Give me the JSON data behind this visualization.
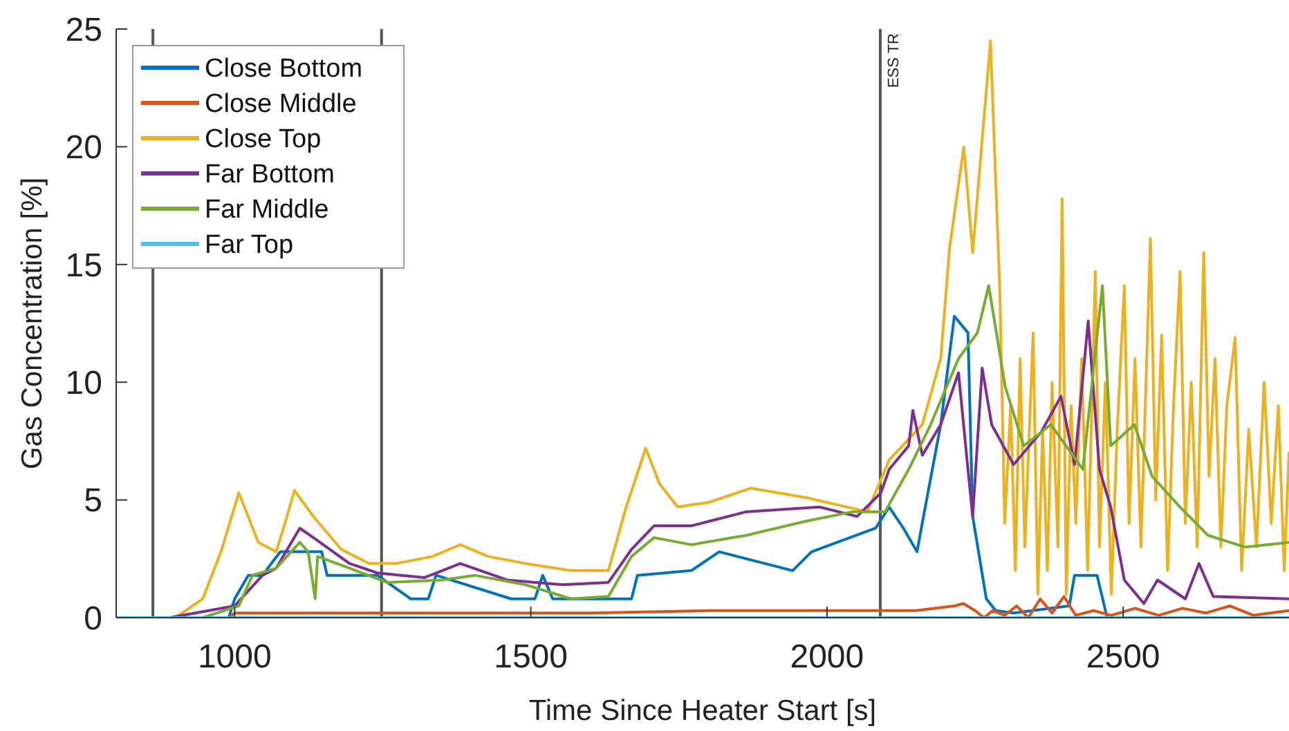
{
  "chart_data": {
    "type": "line",
    "xlabel": "Time Since Heater Start [s]",
    "ylabel": "Gas Concentration [%]",
    "xlim": [
      800,
      2780
    ],
    "ylim": [
      0,
      25
    ],
    "xticks": [
      1000,
      1500,
      2000,
      2500
    ],
    "yticks": [
      0,
      5,
      10,
      15,
      20,
      25
    ],
    "grid": false,
    "legend": "top left",
    "line_style": "solid",
    "marker": "none",
    "ref_lines": [
      {
        "axis": "x",
        "value": 862,
        "label": null,
        "color": "#555555"
      },
      {
        "axis": "x",
        "value": 1248,
        "label": null,
        "color": "#555555"
      },
      {
        "axis": "x",
        "value": 2090,
        "label": "ESS TR",
        "color": "#555555"
      }
    ],
    "series": [
      {
        "name": "Close Bottom",
        "color": "#0072bd",
        "x": [
          800,
          990,
          1000,
          1023,
          1047,
          1077,
          1147,
          1156,
          1241,
          1297,
          1327,
          1340,
          1467,
          1507,
          1520,
          1537,
          1670,
          1680,
          1771,
          1818,
          1942,
          1974,
          2082,
          2105,
          2129,
          2152,
          2160,
          2192,
          2215,
          2238,
          2246,
          2269,
          2285,
          2315,
          2409,
          2418,
          2456,
          2472
        ],
        "values": [
          0,
          0,
          0.8,
          1.8,
          1.8,
          2.8,
          2.8,
          1.8,
          1.8,
          0.8,
          0.8,
          1.8,
          0.8,
          0.8,
          1.8,
          0.8,
          0.8,
          1.8,
          2,
          2.8,
          2,
          2.8,
          3.8,
          4.7,
          3.8,
          2.8,
          3.9,
          8.2,
          12.8,
          12.1,
          4.3,
          0.8,
          0.3,
          0.2,
          0.5,
          1.8,
          1.8,
          0.1
        ]
      },
      {
        "name": "Close Middle",
        "color": "#d95319",
        "x": [
          800,
          990,
          1000,
          1200,
          1400,
          1600,
          1800,
          2000,
          2100,
          2150,
          2215,
          2230,
          2250,
          2265,
          2280,
          2300,
          2320,
          2340,
          2360,
          2380,
          2400,
          2420,
          2450,
          2480,
          2520,
          2560,
          2600,
          2640,
          2680,
          2720,
          2780
        ],
        "values": [
          0,
          0,
          0.2,
          0.2,
          0.2,
          0.2,
          0.3,
          0.3,
          0.3,
          0.3,
          0.5,
          0.6,
          0.3,
          0,
          0.3,
          0.1,
          0.5,
          0,
          0.8,
          0.2,
          0.9,
          0.1,
          0.3,
          0.1,
          0.4,
          0.1,
          0.4,
          0.2,
          0.5,
          0.1,
          0.3
        ]
      },
      {
        "name": "Close Top",
        "color": "#edb120",
        "x": [
          800,
          900,
          946,
          977,
          1007,
          1040,
          1070,
          1086,
          1101,
          1133,
          1180,
          1227,
          1273,
          1334,
          1381,
          1428,
          1491,
          1568,
          1631,
          1661,
          1694,
          1717,
          1748,
          1801,
          1871,
          1965,
          2068,
          2105,
          2161,
          2192,
          2207,
          2231,
          2246,
          2276,
          2292,
          2300,
          2310,
          2318,
          2326,
          2334,
          2348,
          2356,
          2364,
          2372,
          2380,
          2390,
          2397,
          2404,
          2412,
          2420,
          2430,
          2440,
          2453,
          2460,
          2470,
          2480,
          2490,
          2502,
          2510,
          2520,
          2530,
          2546,
          2555,
          2565,
          2575,
          2585,
          2596,
          2605,
          2615,
          2625,
          2636,
          2645,
          2655,
          2665,
          2675,
          2689,
          2700,
          2712,
          2725,
          2738,
          2750,
          2762,
          2772,
          2780
        ],
        "values": [
          0,
          0,
          0.8,
          2.8,
          5.3,
          3.2,
          2.8,
          4.1,
          5.4,
          4.3,
          2.9,
          2.3,
          2.3,
          2.6,
          3.1,
          2.6,
          2.3,
          2,
          2,
          4.7,
          7.2,
          5.7,
          4.7,
          4.9,
          5.5,
          5.1,
          4.5,
          6.7,
          8.2,
          11,
          15.7,
          20,
          15.5,
          24.5,
          13.7,
          4,
          9,
          2,
          11,
          3,
          12.1,
          1,
          8,
          2,
          10,
          3,
          17.8,
          1,
          9,
          4,
          11,
          2,
          14.7,
          3,
          10,
          1,
          8,
          14.1,
          4,
          11,
          3,
          16.1,
          5,
          12,
          2,
          9,
          14.7,
          4,
          10,
          3,
          15.5,
          6,
          11,
          3,
          9,
          11.9,
          2,
          8,
          3,
          10,
          4,
          9,
          2,
          7
        ]
      },
      {
        "name": "Far Bottom",
        "color": "#7e2f8e",
        "x": [
          800,
          890,
          1000,
          1047,
          1070,
          1110,
          1133,
          1194,
          1241,
          1320,
          1381,
          1460,
          1554,
          1631,
          1670,
          1708,
          1771,
          1864,
          1988,
          2051,
          2091,
          2105,
          2138,
          2145,
          2161,
          2192,
          2222,
          2238,
          2246,
          2262,
          2278,
          2315,
          2362,
          2395,
          2418,
          2441,
          2460,
          2479,
          2502,
          2535,
          2558,
          2605,
          2628,
          2652,
          2780
        ],
        "values": [
          0,
          0,
          0.5,
          1.8,
          2.1,
          3.8,
          3.4,
          2.3,
          1.9,
          1.7,
          2.3,
          1.6,
          1.4,
          1.5,
          2.9,
          3.9,
          3.9,
          4.5,
          4.7,
          4.3,
          5.3,
          6.3,
          7.3,
          8.8,
          6.9,
          8.2,
          10.4,
          6.3,
          4.3,
          10.6,
          8.2,
          6.5,
          7.9,
          9.4,
          6.5,
          12.6,
          6.3,
          4.7,
          1.6,
          0.6,
          1.6,
          0.8,
          2.3,
          0.9,
          0.8
        ]
      },
      {
        "name": "Far Middle",
        "color": "#77ac30",
        "x": [
          800,
          946,
          1007,
          1030,
          1070,
          1110,
          1124,
          1136,
          1140,
          1194,
          1257,
          1350,
          1405,
          1491,
          1568,
          1631,
          1670,
          1708,
          1771,
          1864,
          1965,
          2044,
          2098,
          2138,
          2175,
          2222,
          2254,
          2273,
          2301,
          2332,
          2378,
          2432,
          2465,
          2479,
          2519,
          2549,
          2596,
          2643,
          2706,
          2780
        ],
        "values": [
          0,
          0,
          0.5,
          1.8,
          2.1,
          3.2,
          2.8,
          0.8,
          2.6,
          2.1,
          1.5,
          1.6,
          1.8,
          1.4,
          0.8,
          0.9,
          2.6,
          3.4,
          3.1,
          3.5,
          4.1,
          4.5,
          4.5,
          6.3,
          8.2,
          11,
          12.1,
          14.1,
          9.8,
          7.3,
          8.2,
          6.3,
          14.1,
          7.3,
          8.2,
          6,
          4.7,
          3.5,
          3,
          3.2
        ]
      },
      {
        "name": "Far Top",
        "color": "#4dbeee",
        "x": [
          800,
          2780
        ],
        "values": [
          0,
          0
        ]
      }
    ]
  }
}
